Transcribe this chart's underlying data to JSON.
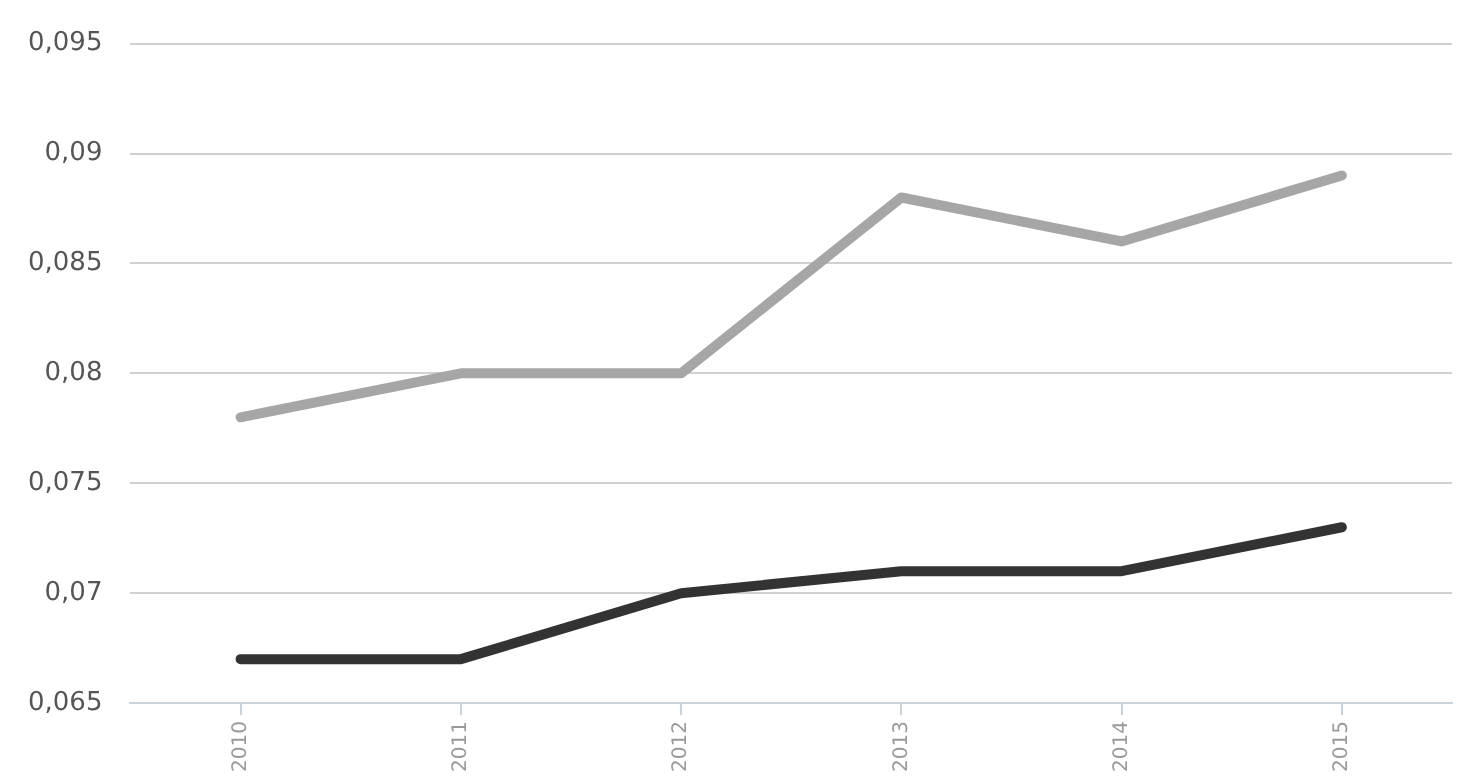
{
  "chart_data": {
    "type": "line",
    "categories": [
      "2010",
      "2011",
      "2012",
      "2013",
      "2014",
      "2015"
    ],
    "series": [
      {
        "color": "#a6a6a6",
        "values": [
          0.078,
          0.08,
          0.08,
          0.088,
          0.086,
          0.089
        ]
      },
      {
        "color": "#333333",
        "values": [
          0.067,
          0.067,
          0.07,
          0.071,
          0.071,
          0.073
        ]
      }
    ],
    "ylim": [
      0.065,
      0.095
    ],
    "yticks": [
      {
        "value": 0.065,
        "label": "0,065"
      },
      {
        "value": 0.07,
        "label": "0,07"
      },
      {
        "value": 0.075,
        "label": "0,075"
      },
      {
        "value": 0.08,
        "label": "0,08"
      },
      {
        "value": 0.085,
        "label": "0,085"
      },
      {
        "value": 0.09,
        "label": "0,09"
      },
      {
        "value": 0.095,
        "label": "0,095"
      }
    ],
    "grid": "y",
    "legend": false,
    "marker": "none",
    "line_style": "solid"
  }
}
